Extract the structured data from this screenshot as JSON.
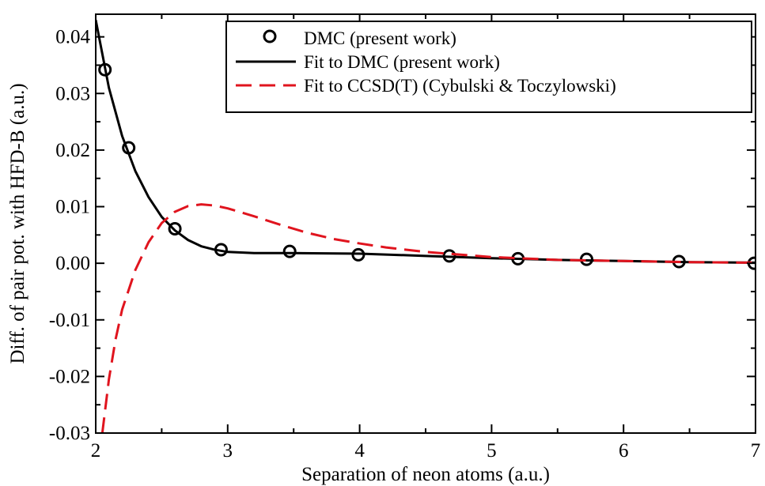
{
  "chart_data": {
    "type": "line",
    "xlabel": "Separation of neon atoms (a.u.)",
    "ylabel": "Diff. of pair pot. with HFD-B (a.u.)",
    "xlim": [
      2,
      7
    ],
    "ylim": [
      -0.03,
      0.044
    ],
    "xticks": [
      2,
      3,
      4,
      5,
      6,
      7
    ],
    "xtick_labels": [
      "2",
      "3",
      "4",
      "5",
      "6",
      "7"
    ],
    "yticks": [
      -0.03,
      -0.02,
      -0.01,
      0.0,
      0.01,
      0.02,
      0.03,
      0.04
    ],
    "ytick_labels": [
      "-0.03",
      "-0.02",
      "-0.01",
      "0.00",
      "0.01",
      "0.02",
      "0.03",
      "0.04"
    ],
    "grid": false,
    "legend_position": "top-right",
    "series": [
      {
        "name": "DMC (present work)",
        "style": "circles",
        "color": "#000000",
        "x": [
          2.07,
          2.25,
          2.6,
          2.95,
          3.47,
          3.99,
          4.68,
          5.2,
          5.72,
          6.42,
          6.99
        ],
        "y": [
          0.0342,
          0.0204,
          0.0061,
          0.0024,
          0.0021,
          0.0015,
          0.0013,
          0.0008,
          0.0007,
          0.0003,
          0.0
        ]
      },
      {
        "name": "Fit to DMC (present work)",
        "style": "solid",
        "color": "#000000",
        "x": [
          2.0,
          2.1,
          2.2,
          2.3,
          2.4,
          2.5,
          2.6,
          2.7,
          2.8,
          2.9,
          3.0,
          3.2,
          3.5,
          4.0,
          4.5,
          5.0,
          5.5,
          6.0,
          6.5,
          7.0
        ],
        "y": [
          0.043,
          0.031,
          0.0225,
          0.0163,
          0.0117,
          0.0082,
          0.0058,
          0.0041,
          0.003,
          0.0024,
          0.002,
          0.0018,
          0.0018,
          0.0017,
          0.0013,
          0.0009,
          0.0006,
          0.0004,
          0.0002,
          0.0001
        ]
      },
      {
        "name": "Fit to CCSD(T) (Cybulski & Toczylowski)",
        "style": "dashed",
        "color": "#e0141e",
        "x": [
          2.05,
          2.1,
          2.15,
          2.2,
          2.3,
          2.4,
          2.5,
          2.6,
          2.7,
          2.8,
          2.9,
          3.0,
          3.2,
          3.4,
          3.6,
          3.8,
          4.0,
          4.2,
          4.5,
          5.0,
          5.5,
          6.0,
          6.5,
          7.0
        ],
        "y": [
          -0.03,
          -0.0205,
          -0.0135,
          -0.0082,
          -0.0012,
          0.0037,
          0.0071,
          0.0091,
          0.0101,
          0.0104,
          0.0102,
          0.0097,
          0.0083,
          0.0068,
          0.0054,
          0.0043,
          0.0035,
          0.0028,
          0.002,
          0.0011,
          0.0006,
          0.0004,
          0.0002,
          0.0001
        ]
      }
    ]
  }
}
